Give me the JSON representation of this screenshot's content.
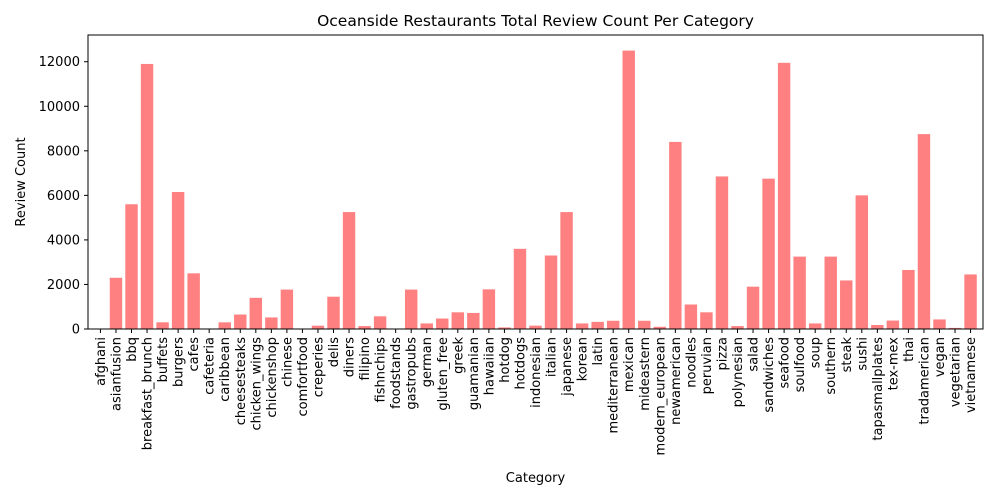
{
  "chart_data": {
    "type": "bar",
    "title": "Oceanside Restaurants Total Review Count Per Category",
    "xlabel": "Category",
    "ylabel": "Review Count",
    "ylim": [
      0,
      13200
    ],
    "yticks": [
      0,
      2000,
      4000,
      6000,
      8000,
      10000,
      12000
    ],
    "grid": false,
    "bar_color": "#ff8080",
    "categories": [
      "afghani",
      "asianfusion",
      "bbq",
      "breakfast_brunch",
      "buffets",
      "burgers",
      "cafes",
      "cafeteria",
      "caribbean",
      "cheesesteaks",
      "chicken_wings",
      "chickenshop",
      "chinese",
      "comfortfood",
      "creperies",
      "delis",
      "diners",
      "filipino",
      "fishnchips",
      "foodstands",
      "gastropubs",
      "german",
      "gluten_free",
      "greek",
      "guamanian",
      "hawaiian",
      "hotdog",
      "hotdogs",
      "indonesian",
      "italian",
      "japanese",
      "korean",
      "latin",
      "mediterranean",
      "mexican",
      "mideastern",
      "modern_european",
      "newamerican",
      "noodles",
      "peruvian",
      "pizza",
      "polynesian",
      "salad",
      "sandwiches",
      "seafood",
      "soulfood",
      "soup",
      "southern",
      "steak",
      "sushi",
      "tapasmallplates",
      "tex-mex",
      "thai",
      "tradamerican",
      "vegan",
      "vegetarian",
      "vietnamese"
    ],
    "values": [
      0,
      2300,
      5600,
      11900,
      300,
      6150,
      2500,
      0,
      300,
      650,
      1400,
      520,
      1770,
      0,
      150,
      1450,
      5250,
      130,
      570,
      20,
      1770,
      250,
      470,
      750,
      720,
      1780,
      70,
      3600,
      150,
      3300,
      5250,
      250,
      320,
      370,
      12500,
      370,
      100,
      8400,
      1100,
      750,
      6850,
      130,
      1900,
      6750,
      11950,
      3250,
      250,
      3250,
      2180,
      6000,
      180,
      380,
      2650,
      8750,
      430,
      50,
      2450
    ]
  }
}
